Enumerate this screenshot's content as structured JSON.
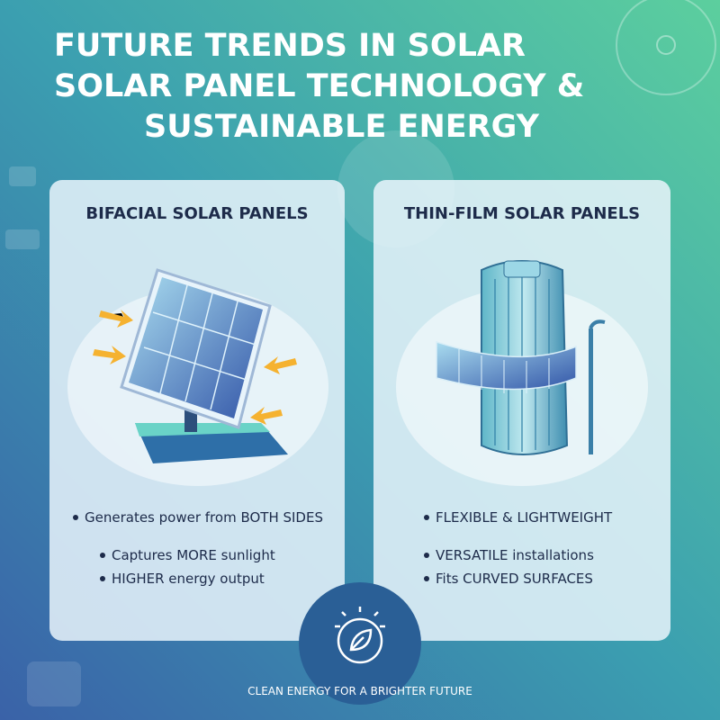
{
  "header": {
    "title_lines": [
      "FUTURE TRENDS IN SOLAR",
      "SOLAR PANEL TECHNOLOGY &",
      "SUSTAINABLE ENERGY"
    ]
  },
  "cards": [
    {
      "heading": "BIFACIAL SOLAR PANELS",
      "bullets": [
        "Generates power from BOTH SIDES",
        "Captures MORE sunlight",
        "HIGHER energy output"
      ]
    },
    {
      "heading": "THIN-FILM SOLAR PANELS",
      "bullets": [
        "FLEXIBLE & LIGHTWEIGHT",
        "VERSATILE installations",
        "Fits CURVED SURFACES"
      ]
    }
  ],
  "footer": {
    "tagline": "CLEAN ENERGY FOR A BRIGHTER FUTURE"
  }
}
